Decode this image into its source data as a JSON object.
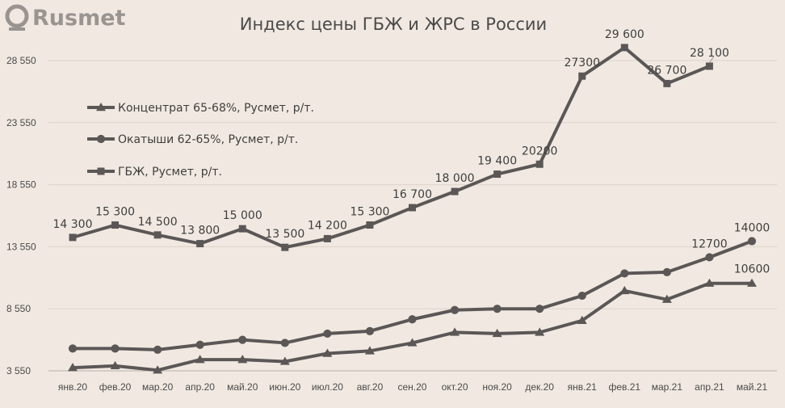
{
  "brand": {
    "logo_text": "Rusmet"
  },
  "colors": {
    "background": "#f1e9e1",
    "series": "#5b5757",
    "grid": "#dcd3cb",
    "text": "#4a4a4a"
  },
  "chart_data": {
    "type": "line",
    "title": "Индекс цены ГБЖ и ЖРС в России",
    "xlabel": "",
    "ylabel": "",
    "ylim": [
      3550,
      29600
    ],
    "yticks": [
      3550,
      8550,
      13550,
      18550,
      23550,
      28550
    ],
    "ytick_labels": [
      "3 550",
      "8 550",
      "13 550",
      "18 550",
      "23 550",
      "28 550"
    ],
    "grid": "horizontal",
    "legend_position": "upper-left",
    "categories": [
      "янв.20",
      "фев.20",
      "мар.20",
      "апр.20",
      "май.20",
      "июн.20",
      "июл.20",
      "авг.20",
      "сен.20",
      "окт.20",
      "ноя.20",
      "дек.20",
      "янв.21",
      "фев.21",
      "мар.21",
      "апр.21",
      "май.21"
    ],
    "series": [
      {
        "name": "Концентрат 65-68%, Русмет, р/т.",
        "marker": "triangle",
        "values": [
          3800,
          3950,
          3600,
          4450,
          4450,
          4300,
          4950,
          5150,
          5800,
          6650,
          6550,
          6650,
          7600,
          10000,
          9300,
          10600,
          10600
        ],
        "data_labels": [
          null,
          null,
          null,
          null,
          null,
          null,
          null,
          null,
          null,
          null,
          null,
          null,
          null,
          null,
          null,
          null,
          "10600"
        ]
      },
      {
        "name": "Окатыши 62-65%, Русмет, р/т.",
        "marker": "circle",
        "values": [
          5350,
          5350,
          5250,
          5650,
          6050,
          5800,
          6550,
          6750,
          7700,
          8450,
          8550,
          8550,
          9600,
          11400,
          11500,
          12700,
          14000
        ],
        "data_labels": [
          null,
          null,
          null,
          null,
          null,
          null,
          null,
          null,
          null,
          null,
          null,
          null,
          null,
          null,
          null,
          "12700",
          "14000"
        ]
      },
      {
        "name": "ГБЖ, Русмет, р/т.",
        "marker": "square",
        "values": [
          14300,
          15300,
          14500,
          13800,
          15000,
          13500,
          14200,
          15300,
          16700,
          18000,
          19400,
          20200,
          27300,
          29600,
          26700,
          28100,
          null
        ],
        "data_labels": [
          "14 300",
          "15 300",
          "14 500",
          "13 800",
          "15 000",
          "13 500",
          "14 200",
          "15 300",
          "16 700",
          "18 000",
          "19 400",
          "20200",
          "27300",
          "29 600",
          "26 700",
          "28 100",
          null
        ]
      }
    ]
  }
}
